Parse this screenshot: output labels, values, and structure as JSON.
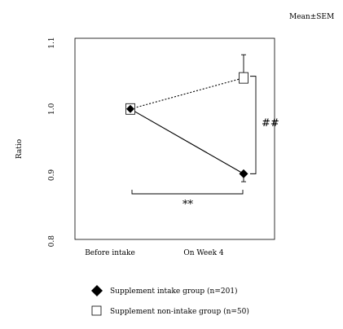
{
  "chart_data": {
    "type": "line",
    "categories": [
      "Before intake",
      "On Week 4"
    ],
    "ylabel": "Ratio",
    "xlabel": "",
    "ylim": [
      0.8,
      1.15
    ],
    "y_ticks": [
      "0.8",
      "0.9",
      "1.0",
      "1.1"
    ],
    "y_tick_values": [
      0.8,
      0.9,
      1.0,
      1.1
    ],
    "annotation": "Mean±SEM",
    "series": [
      {
        "name": "Supplement intake group (n=201)",
        "values": [
          1.0,
          0.902
        ],
        "sem": [
          0.005,
          0.012
        ],
        "marker": "filled-diamond",
        "line_style": "solid",
        "color": "#000000"
      },
      {
        "name": "Supplement non-intake group (n=50)",
        "values": [
          1.0,
          1.047
        ],
        "sem": [
          0.005,
          0.035
        ],
        "marker": "open-square",
        "line_style": "dotted",
        "color": "#000000"
      }
    ],
    "significance": [
      {
        "label": "**",
        "description": "within-group change"
      },
      {
        "label": "##",
        "description": "between groups at week 4"
      }
    ],
    "grid": false
  }
}
